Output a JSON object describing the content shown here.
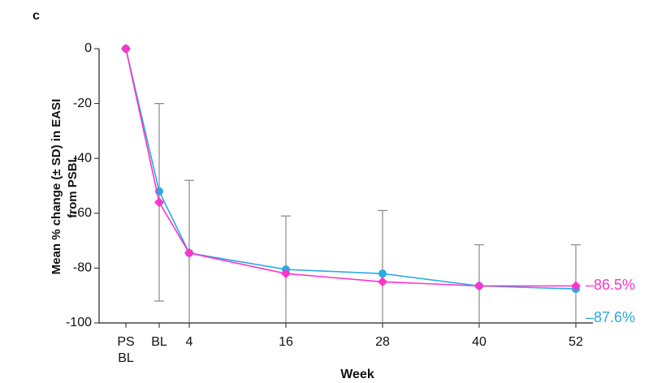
{
  "chart_data": {
    "type": "line",
    "panel_label": "c",
    "y_label": "Mean % change (± SD) in EASI from PSBL",
    "x_label": "Week",
    "categories": [
      "PS BL",
      "BL",
      "4",
      "16",
      "28",
      "40",
      "52"
    ],
    "series": [
      {
        "color": "#29abe2",
        "marker": "circle",
        "values": [
          0,
          -52,
          -74.5,
          -80.5,
          -82,
          -86.5,
          -87.6
        ],
        "value_labels": [
          null,
          null,
          null,
          null,
          null,
          null,
          "–87.6%"
        ]
      },
      {
        "color": "#ff33cc",
        "marker": "diamond",
        "values": [
          0,
          -56,
          -74.5,
          -82,
          -85,
          -86.5,
          -86.5
        ],
        "value_labels": [
          null,
          null,
          null,
          null,
          null,
          null,
          "–86.5%"
        ],
        "sd": [
          null,
          36,
          26.5,
          21,
          26,
          15,
          15
        ]
      }
    ],
    "error_bar_color": "#888888",
    "ylim": [
      -100,
      0
    ],
    "yticks": [
      0,
      -20,
      -40,
      -60,
      -80,
      -100
    ]
  }
}
